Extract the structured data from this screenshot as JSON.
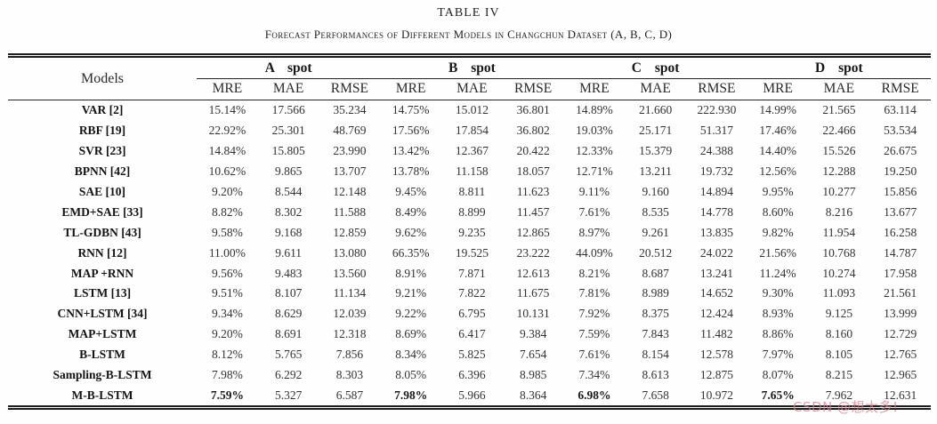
{
  "caption": {
    "title": "TABLE IV",
    "subtitle": "Forecast Performances of Different Models in Changchun Dataset (A, B, C, D)"
  },
  "table": {
    "models_header": "Models",
    "groups": [
      {
        "label": "A spot"
      },
      {
        "label": "B spot"
      },
      {
        "label": "C spot"
      },
      {
        "label": "D spot"
      }
    ],
    "metrics": [
      "MRE",
      "MAE",
      "RMSE"
    ],
    "rows": [
      {
        "model": "VAR [2]",
        "values": [
          "15.14%",
          "17.566",
          "35.234",
          "14.75%",
          "15.012",
          "36.801",
          "14.89%",
          "21.660",
          "222.930",
          "14.99%",
          "21.565",
          "63.114"
        ]
      },
      {
        "model": "RBF [19]",
        "values": [
          "22.92%",
          "25.301",
          "48.769",
          "17.56%",
          "17.854",
          "36.802",
          "19.03%",
          "25.171",
          "51.317",
          "17.46%",
          "22.466",
          "53.534"
        ]
      },
      {
        "model": "SVR [23]",
        "values": [
          "14.84%",
          "15.805",
          "23.990",
          "13.42%",
          "12.367",
          "20.422",
          "12.33%",
          "15.379",
          "24.388",
          "14.40%",
          "15.526",
          "26.675"
        ]
      },
      {
        "model": "BPNN [42]",
        "values": [
          "10.62%",
          "9.865",
          "13.707",
          "13.78%",
          "11.158",
          "18.057",
          "12.71%",
          "13.211",
          "19.732",
          "12.56%",
          "12.288",
          "19.250"
        ]
      },
      {
        "model": "SAE [10]",
        "values": [
          "9.20%",
          "8.544",
          "12.148",
          "9.45%",
          "8.811",
          "11.623",
          "9.11%",
          "9.160",
          "14.894",
          "9.95%",
          "10.277",
          "15.856"
        ]
      },
      {
        "model": "EMD+SAE [33]",
        "values": [
          "8.82%",
          "8.302",
          "11.588",
          "8.49%",
          "8.899",
          "11.457",
          "7.61%",
          "8.535",
          "14.778",
          "8.60%",
          "8.216",
          "13.677"
        ]
      },
      {
        "model": "TL-GDBN [43]",
        "values": [
          "9.58%",
          "9.168",
          "12.859",
          "9.62%",
          "9.235",
          "12.865",
          "8.97%",
          "9.261",
          "13.835",
          "9.82%",
          "11.954",
          "16.258"
        ]
      },
      {
        "model": "RNN [12]",
        "values": [
          "11.00%",
          "9.611",
          "13.080",
          "66.35%",
          "19.525",
          "23.222",
          "44.09%",
          "20.512",
          "24.022",
          "21.56%",
          "10.768",
          "14.787"
        ]
      },
      {
        "model": "MAP +RNN",
        "values": [
          "9.56%",
          "9.483",
          "13.560",
          "8.91%",
          "7.871",
          "12.613",
          "8.21%",
          "8.687",
          "13.241",
          "11.24%",
          "10.274",
          "17.958"
        ]
      },
      {
        "model": "LSTM [13]",
        "values": [
          "9.51%",
          "8.107",
          "11.134",
          "9.21%",
          "7.822",
          "11.675",
          "7.81%",
          "8.989",
          "14.652",
          "9.30%",
          "11.093",
          "21.561"
        ]
      },
      {
        "model": "CNN+LSTM [34]",
        "values": [
          "9.34%",
          "8.629",
          "12.039",
          "9.22%",
          "6.795",
          "10.131",
          "7.92%",
          "8.375",
          "12.424",
          "8.93%",
          "9.125",
          "13.999"
        ]
      },
      {
        "model": "MAP+LSTM",
        "values": [
          "9.20%",
          "8.691",
          "12.318",
          "8.69%",
          "6.417",
          "9.384",
          "7.59%",
          "7.843",
          "11.482",
          "8.86%",
          "8.160",
          "12.729"
        ]
      },
      {
        "model": "B-LSTM",
        "values": [
          "8.12%",
          "5.765",
          "7.856",
          "8.34%",
          "5.825",
          "7.654",
          "7.61%",
          "8.154",
          "12.578",
          "7.97%",
          "8.105",
          "12.765"
        ]
      },
      {
        "model": "Sampling-B-LSTM",
        "values": [
          "7.98%",
          "6.292",
          "8.303",
          "8.05%",
          "6.396",
          "8.985",
          "7.34%",
          "8.613",
          "12.875",
          "8.07%",
          "8.215",
          "12.965"
        ]
      },
      {
        "model": "M-B-LSTM",
        "bold_mre": true,
        "values": [
          "7.59%",
          "5.327",
          "6.587",
          "7.98%",
          "5.966",
          "8.364",
          "6.98%",
          "7.658",
          "10.972",
          "7.65%",
          "7.962",
          "12.631"
        ]
      }
    ]
  },
  "watermark": {
    "text": "CSDN @想太多!",
    "color": "#d2828b",
    "opacity": "0.75"
  }
}
